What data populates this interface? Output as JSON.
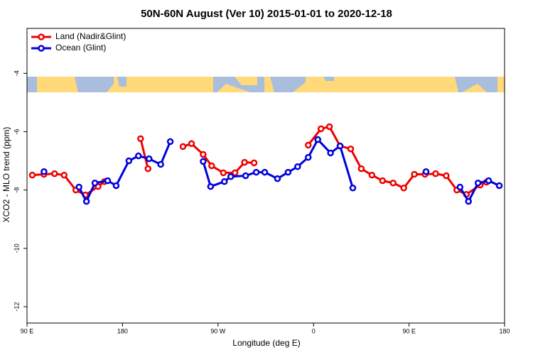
{
  "chart_data": {
    "type": "line",
    "title": "50N-60N August (Ver 10)   2015-01-01 to 2020-12-18",
    "x_label": "Longitude (deg E)",
    "y_label": "XCO2 - MLO trend (ppm)",
    "xlim": [
      90,
      540
    ],
    "ylim": [
      -12.56,
      -2.46
    ],
    "xticks": [
      {
        "value": 90,
        "label": "90 E"
      },
      180,
      {
        "value": 270,
        "label": "90 W"
      },
      {
        "value": 360,
        "label": "0"
      },
      {
        "value": 450,
        "label": "90 E"
      },
      {
        "value": 540,
        "label": "180"
      }
    ],
    "yticks": [
      -4,
      -6,
      -8,
      -10,
      -12
    ],
    "legend": "top-left",
    "series": [
      {
        "name": "Land (Nadir&Glint)",
        "color": "#ee0000",
        "x": [
          95,
          106,
          116,
          125,
          136,
          145,
          157,
          163,
          null,
          197,
          204,
          null,
          237,
          245,
          256,
          264,
          275,
          286,
          295,
          304,
          null,
          355,
          367,
          375,
          385,
          395,
          405,
          415,
          425,
          435,
          445,
          455,
          465,
          475,
          485,
          495,
          504,
          517,
          523
        ],
        "values": [
          -7.49,
          -7.46,
          -7.44,
          -7.49,
          -8.0,
          -8.17,
          -7.88,
          -7.71,
          null,
          -6.24,
          -7.27,
          null,
          -6.51,
          -6.41,
          -6.78,
          -7.17,
          -7.41,
          -7.41,
          -7.05,
          -7.07,
          null,
          -6.46,
          -5.9,
          -5.83,
          -6.49,
          -6.59,
          -7.27,
          -7.49,
          -7.68,
          -7.76,
          -7.93,
          -7.46,
          -7.46,
          -7.44,
          -7.51,
          -8.0,
          -8.15,
          -7.83,
          -7.73
        ]
      },
      {
        "name": "Ocean (Glint)",
        "color": "#0000dd",
        "x": [
          106,
          null,
          139,
          146,
          154,
          166,
          174,
          186,
          195,
          205,
          216,
          225,
          null,
          256,
          263,
          276,
          282,
          296,
          306,
          314,
          326,
          336,
          345,
          355,
          364,
          376,
          385,
          397,
          null,
          466,
          null,
          498,
          506,
          515,
          525,
          535
        ],
        "values": [
          -7.37,
          null,
          -7.9,
          -8.39,
          -7.76,
          -7.68,
          -7.85,
          -7.0,
          -6.83,
          -6.93,
          -7.12,
          -6.34,
          null,
          -7.02,
          -7.88,
          -7.71,
          -7.54,
          -7.51,
          -7.39,
          -7.39,
          -7.61,
          -7.39,
          -7.2,
          -6.88,
          -6.27,
          -6.73,
          -6.49,
          -7.93,
          null,
          -7.37,
          null,
          -7.9,
          -8.39,
          -7.76,
          -7.68,
          -7.85
        ]
      }
    ]
  }
}
